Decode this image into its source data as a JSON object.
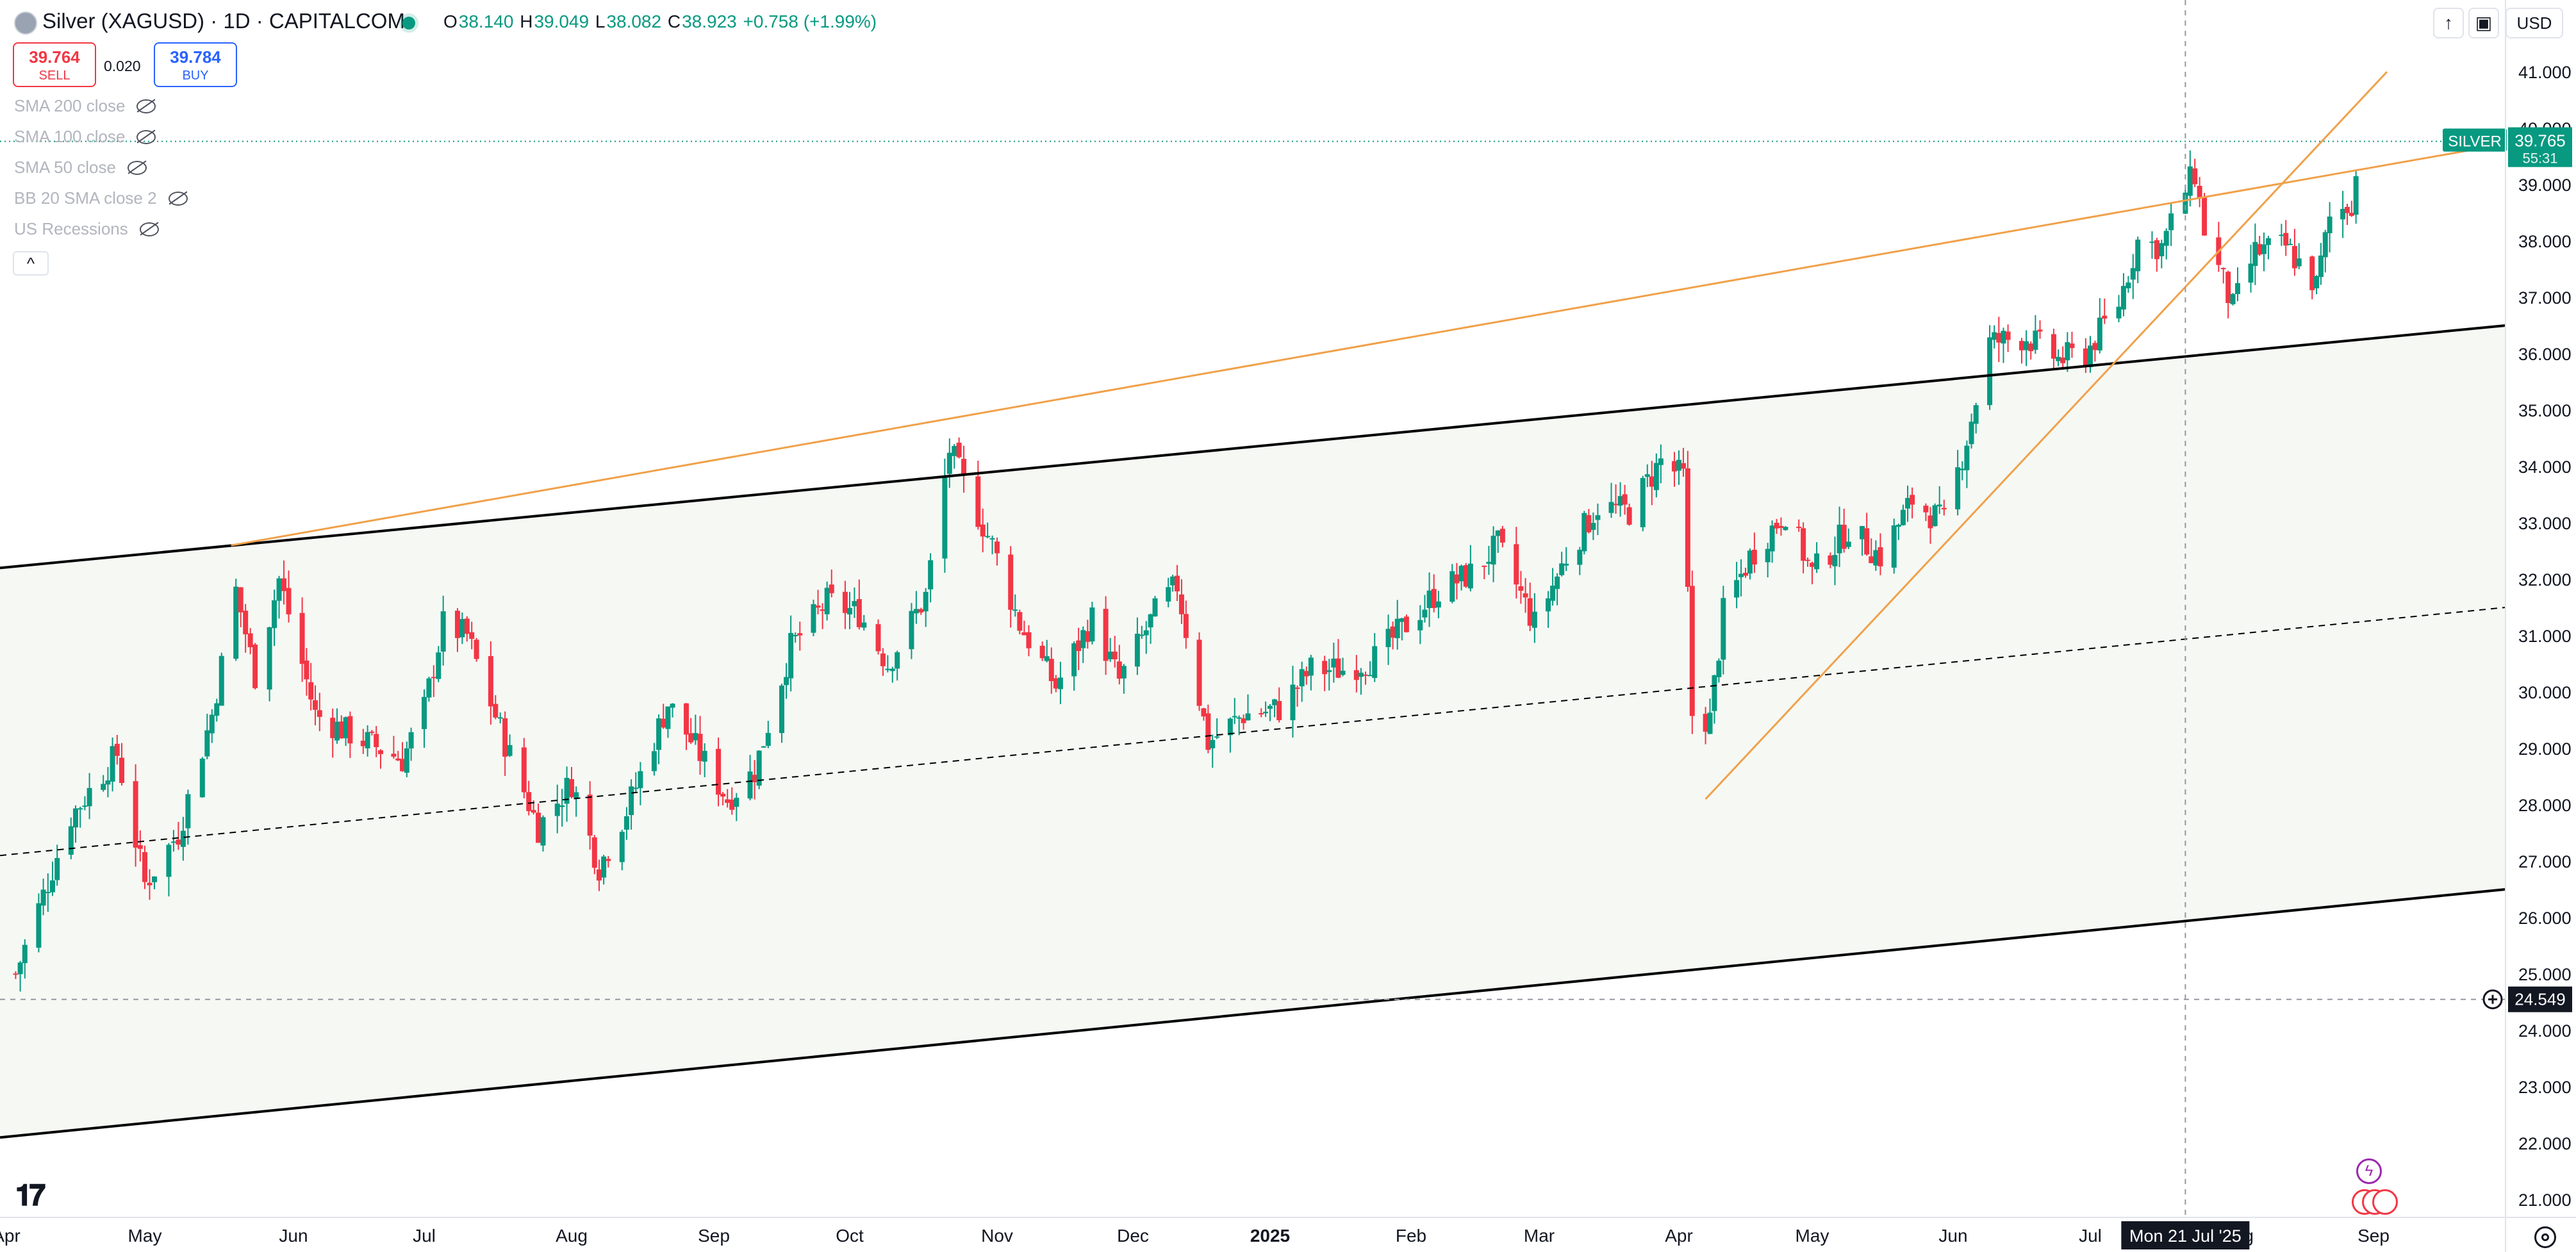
{
  "header": {
    "symbol_title": "Silver (XAGUSD) · 1D · CAPITALCOM",
    "ohlc": {
      "o_label": "O",
      "o": "38.140",
      "h_label": "H",
      "h": "39.049",
      "l_label": "L",
      "l": "38.082",
      "c_label": "C",
      "c": "38.923",
      "change": "+0.758 (+1.99%)"
    },
    "sell": {
      "price": "39.764",
      "label": "SELL"
    },
    "buy": {
      "price": "39.784",
      "label": "BUY"
    },
    "spread": "0.020"
  },
  "indicators": [
    {
      "label": "SMA 200 close"
    },
    {
      "label": "SMA 100 close"
    },
    {
      "label": "SMA 50 close"
    },
    {
      "label": "BB 20 SMA close 2"
    },
    {
      "label": "US Recessions"
    }
  ],
  "toolbar": {
    "currency": "USD",
    "collapse_glyph": "^"
  },
  "price_axis": {
    "labels": [
      "41.000",
      "40.000",
      "39.000",
      "38.000",
      "37.000",
      "36.000",
      "35.000",
      "34.000",
      "33.000",
      "32.000",
      "31.000",
      "30.000",
      "29.000",
      "28.000",
      "27.000",
      "26.000",
      "25.000",
      "24.000",
      "23.000",
      "22.000",
      "21.000"
    ],
    "last_price_tag": {
      "label": "SILVER",
      "price": "39.765",
      "countdown": "55:31"
    },
    "crosshair_price": "24.549"
  },
  "time_axis": {
    "labels": [
      "Apr",
      "May",
      "Jun",
      "Jul",
      "Aug",
      "Sep",
      "Oct",
      "Nov",
      "Dec",
      "2025",
      "Feb",
      "Mar",
      "Apr",
      "May",
      "Jun",
      "Jul",
      "Aug",
      "Sep"
    ],
    "crosshair_date": "Mon 21 Jul '25"
  },
  "colors": {
    "up": "#089981",
    "down": "#f23645",
    "trendline": "#f0a14a",
    "channel": "#000000",
    "accent": "#2962ff"
  },
  "chart_data": {
    "type": "candlestick",
    "ylim": [
      20.6,
      41.5
    ],
    "x_range": [
      "2024-04-01",
      "2025-09-30"
    ],
    "series_anchors": [
      {
        "date": "2024-04-03",
        "close": 25.0
      },
      {
        "date": "2024-04-15",
        "close": 27.8
      },
      {
        "date": "2024-04-25",
        "close": 28.9
      },
      {
        "date": "2024-05-01",
        "close": 26.6
      },
      {
        "date": "2024-05-08",
        "close": 27.5
      },
      {
        "date": "2024-05-15",
        "close": 29.6
      },
      {
        "date": "2024-05-20",
        "close": 31.8
      },
      {
        "date": "2024-05-24",
        "close": 30.3
      },
      {
        "date": "2024-05-29",
        "close": 32.0
      },
      {
        "date": "2024-06-06",
        "close": 29.6
      },
      {
        "date": "2024-06-13",
        "close": 29.3
      },
      {
        "date": "2024-06-26",
        "close": 28.8
      },
      {
        "date": "2024-07-01",
        "close": 29.7
      },
      {
        "date": "2024-07-05",
        "close": 31.2
      },
      {
        "date": "2024-07-10",
        "close": 31.0
      },
      {
        "date": "2024-07-18",
        "close": 29.1
      },
      {
        "date": "2024-07-25",
        "close": 27.6
      },
      {
        "date": "2024-08-01",
        "close": 28.4
      },
      {
        "date": "2024-08-07",
        "close": 26.9
      },
      {
        "date": "2024-08-13",
        "close": 27.9
      },
      {
        "date": "2024-08-22",
        "close": 29.8
      },
      {
        "date": "2024-09-04",
        "close": 28.1
      },
      {
        "date": "2024-09-10",
        "close": 28.6
      },
      {
        "date": "2024-09-18",
        "close": 30.8
      },
      {
        "date": "2024-09-26",
        "close": 31.6
      },
      {
        "date": "2024-10-03",
        "close": 31.4
      },
      {
        "date": "2024-10-09",
        "close": 30.5
      },
      {
        "date": "2024-10-17",
        "close": 31.7
      },
      {
        "date": "2024-10-22",
        "close": 34.3
      },
      {
        "date": "2024-10-25",
        "close": 33.7
      },
      {
        "date": "2024-10-31",
        "close": 32.6
      },
      {
        "date": "2024-11-06",
        "close": 31.2
      },
      {
        "date": "2024-11-14",
        "close": 30.1
      },
      {
        "date": "2024-11-22",
        "close": 31.3
      },
      {
        "date": "2024-11-28",
        "close": 30.2
      },
      {
        "date": "2024-12-06",
        "close": 31.4
      },
      {
        "date": "2024-12-11",
        "close": 31.9
      },
      {
        "date": "2024-12-18",
        "close": 29.1
      },
      {
        "date": "2024-12-26",
        "close": 29.6
      },
      {
        "date": "2025-01-03",
        "close": 29.7
      },
      {
        "date": "2025-01-10",
        "close": 30.4
      },
      {
        "date": "2025-01-17",
        "close": 30.4
      },
      {
        "date": "2025-01-24",
        "close": 30.6
      },
      {
        "date": "2025-01-31",
        "close": 31.2
      },
      {
        "date": "2025-02-07",
        "close": 31.8
      },
      {
        "date": "2025-02-14",
        "close": 32.1
      },
      {
        "date": "2025-02-20",
        "close": 32.6
      },
      {
        "date": "2025-02-28",
        "close": 31.2
      },
      {
        "date": "2025-03-07",
        "close": 32.4
      },
      {
        "date": "2025-03-14",
        "close": 33.3
      },
      {
        "date": "2025-03-21",
        "close": 33.2
      },
      {
        "date": "2025-03-28",
        "close": 34.1
      },
      {
        "date": "2025-04-02",
        "close": 33.8
      },
      {
        "date": "2025-04-04",
        "close": 29.6
      },
      {
        "date": "2025-04-08",
        "close": 29.5
      },
      {
        "date": "2025-04-11",
        "close": 31.4
      },
      {
        "date": "2025-04-17",
        "close": 32.4
      },
      {
        "date": "2025-04-25",
        "close": 33.2
      },
      {
        "date": "2025-05-01",
        "close": 32.1
      },
      {
        "date": "2025-05-09",
        "close": 32.9
      },
      {
        "date": "2025-05-16",
        "close": 32.4
      },
      {
        "date": "2025-05-23",
        "close": 33.4
      },
      {
        "date": "2025-05-30",
        "close": 33.0
      },
      {
        "date": "2025-06-04",
        "close": 34.5
      },
      {
        "date": "2025-06-09",
        "close": 36.2
      },
      {
        "date": "2025-06-17",
        "close": 36.3
      },
      {
        "date": "2025-06-24",
        "close": 35.9
      },
      {
        "date": "2025-06-30",
        "close": 36.0
      },
      {
        "date": "2025-07-07",
        "close": 36.9
      },
      {
        "date": "2025-07-11",
        "close": 38.0
      },
      {
        "date": "2025-07-16",
        "close": 37.9
      },
      {
        "date": "2025-07-21",
        "close": 38.9
      },
      {
        "date": "2025-07-23",
        "close": 39.2
      },
      {
        "date": "2025-07-25",
        "close": 38.2
      },
      {
        "date": "2025-07-31",
        "close": 36.8
      },
      {
        "date": "2025-08-05",
        "close": 37.8
      },
      {
        "date": "2025-08-12",
        "close": 37.9
      },
      {
        "date": "2025-08-19",
        "close": 37.2
      },
      {
        "date": "2025-08-22",
        "close": 38.4
      },
      {
        "date": "2025-08-27",
        "close": 38.7
      },
      {
        "date": "2025-08-29",
        "close": 39.6
      }
    ]
  }
}
